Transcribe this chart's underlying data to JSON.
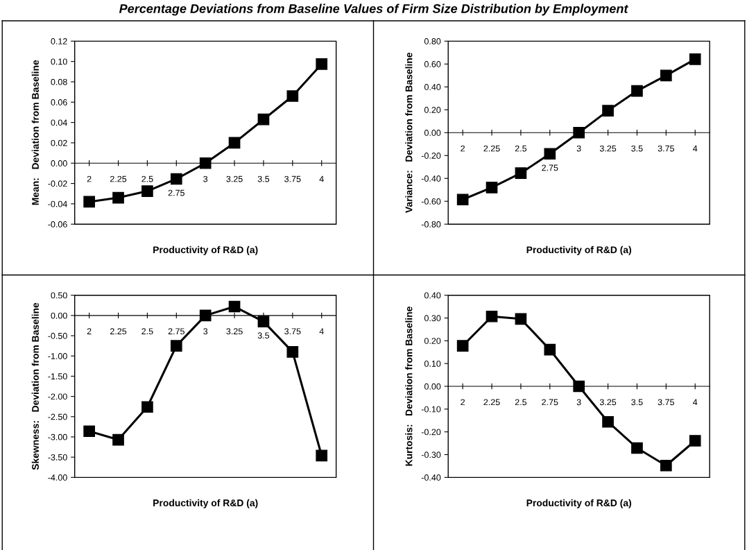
{
  "chart_data": [
    {
      "type": "line",
      "title": "Percentage Deviations from Baseline Values of Firm Size Distribution by Employment",
      "xlabel": "Productivity of R&D (a)",
      "ylabel": "Mean:   Deviation from Baseline",
      "categories": [
        "2",
        "2.25",
        "2.5",
        "2.75",
        "3",
        "3.25",
        "3.5",
        "3.75",
        "4"
      ],
      "marker": "square",
      "line_style": "solid",
      "grid": false,
      "legend": false,
      "ylim": [
        -0.06,
        0.12
      ],
      "yticks": [
        {
          "value": -0.06,
          "label": "-0.06"
        },
        {
          "value": -0.04,
          "label": "-0.04"
        },
        {
          "value": -0.02,
          "label": "-0.02"
        },
        {
          "value": 0,
          "label": "0.00"
        },
        {
          "value": 0.02,
          "label": "0.02"
        },
        {
          "value": 0.04,
          "label": "0.04"
        },
        {
          "value": 0.06,
          "label": "0.06"
        },
        {
          "value": 0.08,
          "label": "0.08"
        },
        {
          "value": 0.1,
          "label": "0.10"
        },
        {
          "value": 0.12,
          "label": "0.12"
        }
      ],
      "series": [
        {
          "color": "#000000",
          "values": [
            -0.038,
            -0.034,
            -0.0275,
            -0.0155,
            0,
            0.02,
            0.043,
            0.066,
            0.0975
          ]
        }
      ]
    },
    {
      "type": "line",
      "xlabel": "Productivity of R&D (a)",
      "ylabel": "Variance:   Deviation from Baseline",
      "categories": [
        "2",
        "2.25",
        "2.5",
        "2.75",
        "3",
        "3.25",
        "3.5",
        "3.75",
        "4"
      ],
      "marker": "square",
      "line_style": "solid",
      "grid": false,
      "legend": false,
      "ylim": [
        -0.8,
        0.8
      ],
      "yticks": [
        {
          "value": -0.8,
          "label": "-0.80"
        },
        {
          "value": -0.6,
          "label": "-0.60"
        },
        {
          "value": -0.4,
          "label": "-0.40"
        },
        {
          "value": -0.2,
          "label": "-0.20"
        },
        {
          "value": 0,
          "label": "0.00"
        },
        {
          "value": 0.2,
          "label": "0.20"
        },
        {
          "value": 0.4,
          "label": "0.40"
        },
        {
          "value": 0.6,
          "label": "0.60"
        },
        {
          "value": 0.8,
          "label": "0.80"
        }
      ],
      "series": [
        {
          "color": "#000000",
          "values": [
            -0.585,
            -0.48,
            -0.354,
            -0.185,
            0,
            0.192,
            0.365,
            0.5,
            0.642
          ]
        }
      ]
    },
    {
      "type": "line",
      "xlabel": "Productivity of R&D (a)",
      "ylabel": "Skewness:   Deviation from Baseline",
      "categories": [
        "2",
        "2.25",
        "2.5",
        "2.75",
        "3",
        "3.25",
        "3.5",
        "3.75",
        "4"
      ],
      "marker": "square",
      "line_style": "solid",
      "grid": false,
      "legend": false,
      "ylim": [
        -4.0,
        0.5
      ],
      "yticks": [
        {
          "value": -4.0,
          "label": "-4.00"
        },
        {
          "value": -3.5,
          "label": "-3.50"
        },
        {
          "value": -3.0,
          "label": "-3.00"
        },
        {
          "value": -2.5,
          "label": "-2.50"
        },
        {
          "value": -2.0,
          "label": "-2.00"
        },
        {
          "value": -1.5,
          "label": "-1.50"
        },
        {
          "value": -1.0,
          "label": "-1.00"
        },
        {
          "value": -0.5,
          "label": "-0.50"
        },
        {
          "value": 0,
          "label": "0.00"
        },
        {
          "value": 0.5,
          "label": "0.50"
        }
      ],
      "series": [
        {
          "color": "#000000",
          "values": [
            -2.86,
            -3.07,
            -2.26,
            -0.75,
            0,
            0.22,
            -0.15,
            -0.9,
            -3.46
          ]
        }
      ]
    },
    {
      "type": "line",
      "xlabel": "Productivity of R&D (a)",
      "ylabel": "Kurtosis:   Deviation from Baseline",
      "categories": [
        "2",
        "2.25",
        "2.5",
        "2.75",
        "3",
        "3.25",
        "3.5",
        "3.75",
        "4"
      ],
      "marker": "square",
      "line_style": "solid",
      "grid": false,
      "legend": false,
      "ylim": [
        -0.4,
        0.4
      ],
      "yticks": [
        {
          "value": -0.4,
          "label": "-0.40"
        },
        {
          "value": -0.3,
          "label": "-0.30"
        },
        {
          "value": -0.2,
          "label": "-0.20"
        },
        {
          "value": -0.1,
          "label": "-0.10"
        },
        {
          "value": 0,
          "label": "0.00"
        },
        {
          "value": 0.1,
          "label": "0.10"
        },
        {
          "value": 0.2,
          "label": "0.20"
        },
        {
          "value": 0.3,
          "label": "0.30"
        },
        {
          "value": 0.4,
          "label": "0.40"
        }
      ],
      "series": [
        {
          "color": "#000000",
          "values": [
            0.178,
            0.307,
            0.296,
            0.161,
            0,
            -0.156,
            -0.271,
            -0.348,
            -0.239
          ]
        }
      ]
    }
  ]
}
